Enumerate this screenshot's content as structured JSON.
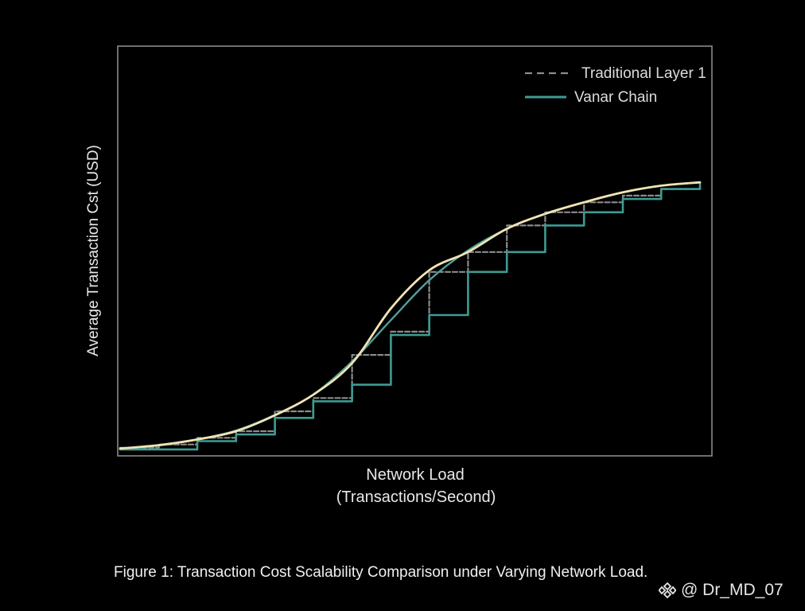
{
  "chart_data": {
    "type": "line",
    "title": "",
    "xlabel": "Network Load",
    "xlabel_line2": "(Transactions/Second)",
    "ylabel": "Average Transaction Cst (USD)",
    "xlim": [
      0,
      100
    ],
    "ylim": [
      0,
      100
    ],
    "grid": false,
    "legend_position": "top-right",
    "series": [
      {
        "name": "Traditional Layer 1",
        "style": "dashed-step",
        "color": "#8c8c8c",
        "x": [
          0,
          6.7,
          13.3,
          20,
          26.7,
          33.3,
          40,
          46.7,
          53.3,
          60,
          66.7,
          73.3,
          80,
          86.7,
          93.3,
          100
        ],
        "y": [
          1,
          2,
          4,
          6,
          12,
          16,
          29,
          36,
          54,
          60,
          68,
          72,
          75,
          77,
          79,
          81
        ]
      },
      {
        "name": "Vanar Chain",
        "style": "step",
        "color": "#3e9c93",
        "x": [
          0,
          6.7,
          13.3,
          20,
          26.7,
          33.3,
          40,
          46.7,
          53.3,
          60,
          66.7,
          73.3,
          80,
          86.7,
          93.3,
          100
        ],
        "y": [
          0.5,
          0.5,
          3,
          5,
          10,
          15,
          20,
          35,
          41,
          54,
          60,
          68,
          72,
          76,
          79,
          81
        ]
      },
      {
        "name": "",
        "style": "smooth",
        "color": "#f0e4b4",
        "x": [
          0,
          6.7,
          13.3,
          20,
          26.7,
          33.3,
          40,
          46.7,
          53.3,
          60,
          66.7,
          73.3,
          80,
          86.7,
          93.3,
          100
        ],
        "y": [
          0.8,
          1.8,
          3.5,
          6,
          10.8,
          17,
          26.5,
          43,
          54.5,
          60,
          67,
          71.5,
          75,
          78,
          80,
          81
        ]
      },
      {
        "name": "",
        "style": "smooth",
        "color": "#4f9e96",
        "x": [
          0,
          6.7,
          13.3,
          20,
          26.7,
          33.3,
          40,
          46.7,
          53.3,
          60,
          66.7,
          73.3,
          80,
          86.7,
          93.3,
          100
        ],
        "y": [
          0.6,
          1.7,
          3.5,
          6.2,
          10.9,
          17,
          27,
          39.5,
          51.5,
          60.5,
          67,
          71.6,
          75,
          78,
          80,
          81
        ]
      }
    ]
  },
  "caption": "Figure 1: Transaction Cost Scalability Comparison under Varying Network Load.",
  "watermark": {
    "icon": "diamond-logo-icon",
    "text": "@ Dr_MD_07"
  }
}
